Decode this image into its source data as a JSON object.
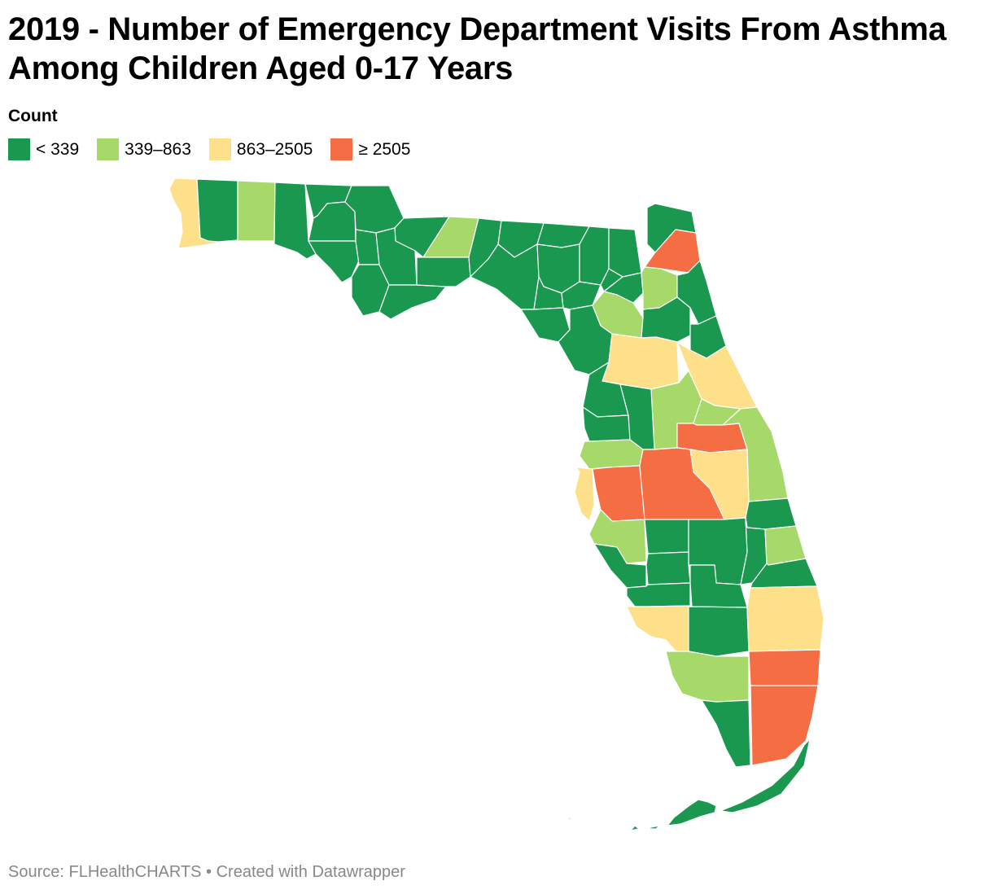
{
  "title": "2019 - Number of Emergency Department Visits From Asthma Among Children Aged 0-17 Years",
  "legend": {
    "title": "Count",
    "items": [
      {
        "label": "< 339",
        "color": "#1a9850"
      },
      {
        "label": "339–863",
        "color": "#a6d96a"
      },
      {
        "label": "863–2505",
        "color": "#fee08b"
      },
      {
        "label": "≥ 2505",
        "color": "#f46d43"
      }
    ]
  },
  "map": {
    "region": "Florida",
    "unit": "county",
    "counties": [
      {
        "name": "Escambia",
        "category": "863–2505"
      },
      {
        "name": "Santa Rosa",
        "category": "< 339"
      },
      {
        "name": "Okaloosa",
        "category": "339–863"
      },
      {
        "name": "Walton",
        "category": "< 339"
      },
      {
        "name": "Holmes",
        "category": "< 339"
      },
      {
        "name": "Washington",
        "category": "< 339"
      },
      {
        "name": "Jackson",
        "category": "< 339"
      },
      {
        "name": "Bay",
        "category": "< 339"
      },
      {
        "name": "Calhoun",
        "category": "< 339"
      },
      {
        "name": "Gulf",
        "category": "< 339"
      },
      {
        "name": "Gadsden",
        "category": "< 339"
      },
      {
        "name": "Leon",
        "category": "339–863"
      },
      {
        "name": "Liberty",
        "category": "< 339"
      },
      {
        "name": "Franklin",
        "category": "< 339"
      },
      {
        "name": "Wakulla",
        "category": "< 339"
      },
      {
        "name": "Jefferson",
        "category": "< 339"
      },
      {
        "name": "Madison",
        "category": "< 339"
      },
      {
        "name": "Taylor",
        "category": "< 339"
      },
      {
        "name": "Hamilton",
        "category": "< 339"
      },
      {
        "name": "Suwannee",
        "category": "< 339"
      },
      {
        "name": "Lafayette",
        "category": "< 339"
      },
      {
        "name": "Dixie",
        "category": "< 339"
      },
      {
        "name": "Columbia",
        "category": "< 339"
      },
      {
        "name": "Gilchrist",
        "category": "< 339"
      },
      {
        "name": "Levy",
        "category": "< 339"
      },
      {
        "name": "Baker",
        "category": "< 339"
      },
      {
        "name": "Union",
        "category": "< 339"
      },
      {
        "name": "Bradford",
        "category": "< 339"
      },
      {
        "name": "Alachua",
        "category": "339–863"
      },
      {
        "name": "Nassau",
        "category": "< 339"
      },
      {
        "name": "Duval",
        "category": "≥ 2505"
      },
      {
        "name": "Clay",
        "category": "339–863"
      },
      {
        "name": "St. Johns",
        "category": "< 339"
      },
      {
        "name": "Putnam",
        "category": "< 339"
      },
      {
        "name": "Flagler",
        "category": "< 339"
      },
      {
        "name": "Marion",
        "category": "863–2505"
      },
      {
        "name": "Volusia",
        "category": "863–2505"
      },
      {
        "name": "Lake",
        "category": "339–863"
      },
      {
        "name": "Seminole",
        "category": "339–863"
      },
      {
        "name": "Orange",
        "category": "≥ 2505"
      },
      {
        "name": "Brevard",
        "category": "339–863"
      },
      {
        "name": "Osceola",
        "category": "863–2505"
      },
      {
        "name": "Citrus",
        "category": "< 339"
      },
      {
        "name": "Sumter",
        "category": "< 339"
      },
      {
        "name": "Hernando",
        "category": "< 339"
      },
      {
        "name": "Pasco",
        "category": "339–863"
      },
      {
        "name": "Pinellas",
        "category": "863–2505"
      },
      {
        "name": "Hillsborough",
        "category": "≥ 2505"
      },
      {
        "name": "Polk",
        "category": "≥ 2505"
      },
      {
        "name": "Indian River",
        "category": "< 339"
      },
      {
        "name": "Manatee",
        "category": "339–863"
      },
      {
        "name": "Hardee",
        "category": "< 339"
      },
      {
        "name": "Highlands",
        "category": "< 339"
      },
      {
        "name": "Okeechobee",
        "category": "< 339"
      },
      {
        "name": "St. Lucie",
        "category": "339–863"
      },
      {
        "name": "Sarasota",
        "category": "< 339"
      },
      {
        "name": "DeSoto",
        "category": "< 339"
      },
      {
        "name": "Martin",
        "category": "< 339"
      },
      {
        "name": "Charlotte",
        "category": "< 339"
      },
      {
        "name": "Glades",
        "category": "< 339"
      },
      {
        "name": "Lee",
        "category": "863–2505"
      },
      {
        "name": "Hendry",
        "category": "< 339"
      },
      {
        "name": "Palm Beach",
        "category": "863–2505"
      },
      {
        "name": "Collier",
        "category": "339–863"
      },
      {
        "name": "Broward",
        "category": "≥ 2505"
      },
      {
        "name": "Monroe",
        "category": "< 339"
      },
      {
        "name": "Miami-Dade",
        "category": "≥ 2505"
      }
    ]
  },
  "footer": "Source: FLHealthCHARTS • Created with Datawrapper"
}
